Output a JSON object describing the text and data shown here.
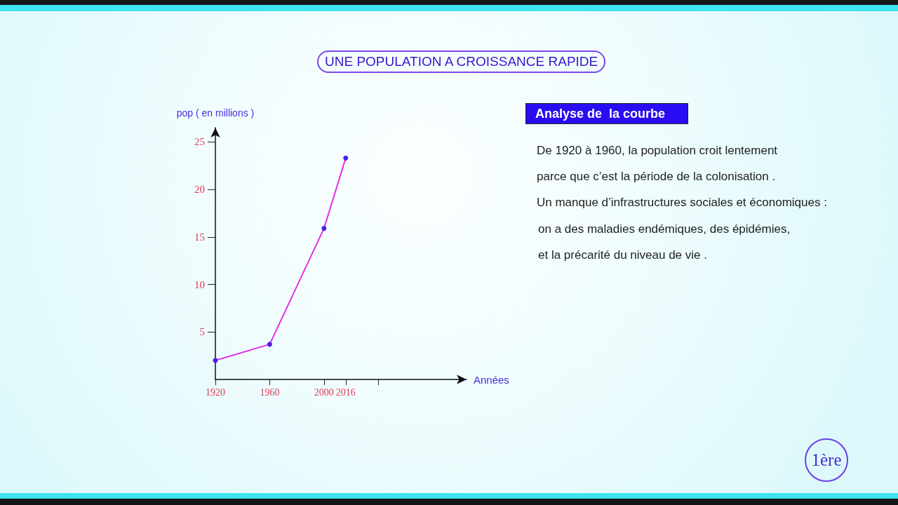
{
  "chart_data": [
    {
      "type": "line",
      "title": "UNE POPULATION A CROISSANCE RAPIDE",
      "xlabel": "Années",
      "ylabel": "pop ( en millions )",
      "x": [
        1920,
        1960,
        2000,
        2016
      ],
      "series": [
        {
          "color": "#e62ee6",
          "colors": [
            "#4a20e8",
            "#4a20e8",
            "#4a20e8",
            "#4a20e8"
          ],
          "values": [
            2,
            3.7,
            15.9,
            23.3
          ]
        }
      ],
      "xlim": [
        1920,
        2105
      ],
      "xticks": [
        1920,
        1960,
        2000,
        2016,
        {
          "value": 2040,
          "label": null
        }
      ],
      "ylim": [
        0,
        26.5
      ],
      "yticks": [
        5,
        10,
        15,
        20,
        25
      ],
      "marker": "circle"
    },
    {
      "type": "other",
      "title": "Analyse de  la courbe",
      "annotations": [
        "De 1920 à 1960, la population croit lentement",
        "parce que c’est la période de la colonisation .",
        "Un manque d’infrastructures sociales et économiques :",
        "on a des maladies endémiques, des épidémies,",
        "et la précarité du niveau de vie .",
        "1ère"
      ]
    }
  ]
}
